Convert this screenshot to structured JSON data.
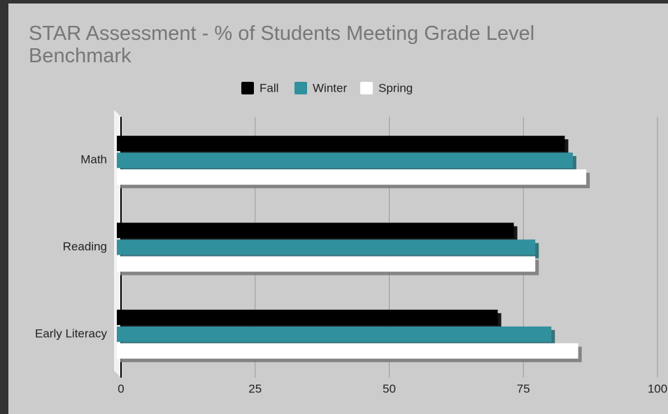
{
  "chart_data": {
    "type": "bar",
    "orientation": "horizontal",
    "title": "STAR Assessment - % of Students Meeting Grade Level Benchmark",
    "categories": [
      "Math",
      "Reading",
      "Early Literacy"
    ],
    "series": [
      {
        "name": "Fall",
        "color": "#000000",
        "values": [
          83.5,
          74,
          71
        ]
      },
      {
        "name": "Winter",
        "color": "#31909d",
        "values": [
          85,
          78,
          81
        ]
      },
      {
        "name": "Spring",
        "color": "#ffffff",
        "values": [
          87.5,
          78,
          86
        ]
      }
    ],
    "xlim": [
      0,
      100
    ],
    "xticks": [
      0,
      25,
      50,
      75,
      100
    ],
    "grid": true,
    "legend": "top"
  }
}
